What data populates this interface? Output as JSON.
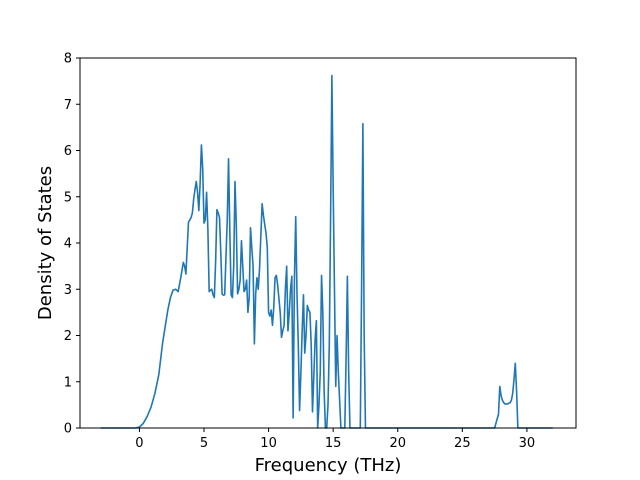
{
  "chart_data": {
    "type": "line",
    "title": "",
    "xlabel": "Frequency (THz)",
    "ylabel": "Density of States",
    "xlim": [
      -4.6,
      33.8
    ],
    "ylim": [
      0,
      8
    ],
    "xticks": [
      0,
      5,
      10,
      15,
      20,
      25,
      30
    ],
    "yticks": [
      0,
      1,
      2,
      3,
      4,
      5,
      6,
      7,
      8
    ],
    "grid": false,
    "legend": "none",
    "series": [
      {
        "color": "#1f77b4",
        "x": [
          -3.0,
          -0.3,
          0.0,
          0.3,
          0.6,
          0.9,
          1.2,
          1.5,
          1.8,
          2.0,
          2.2,
          2.4,
          2.6,
          2.8,
          3.0,
          3.2,
          3.4,
          3.5,
          3.6,
          3.7,
          3.8,
          3.9,
          4.0,
          4.1,
          4.2,
          4.3,
          4.4,
          4.5,
          4.6,
          4.7,
          4.8,
          4.9,
          5.0,
          5.1,
          5.2,
          5.3,
          5.4,
          5.5,
          5.6,
          5.7,
          5.8,
          5.9,
          6.0,
          6.1,
          6.2,
          6.3,
          6.4,
          6.5,
          6.6,
          6.7,
          6.8,
          6.9,
          7.0,
          7.1,
          7.2,
          7.3,
          7.4,
          7.5,
          7.6,
          7.7,
          7.8,
          7.9,
          8.0,
          8.1,
          8.2,
          8.3,
          8.4,
          8.5,
          8.6,
          8.7,
          8.8,
          8.9,
          9.0,
          9.1,
          9.2,
          9.3,
          9.4,
          9.5,
          9.6,
          9.7,
          9.8,
          9.9,
          10.0,
          10.1,
          10.2,
          10.3,
          10.4,
          10.5,
          10.6,
          10.7,
          10.8,
          10.9,
          11.0,
          11.1,
          11.2,
          11.3,
          11.4,
          11.5,
          11.6,
          11.7,
          11.8,
          11.9,
          12.0,
          12.1,
          12.2,
          12.3,
          12.4,
          12.5,
          12.6,
          12.7,
          12.8,
          12.9,
          13.0,
          13.1,
          13.2,
          13.3,
          13.4,
          13.5,
          13.6,
          13.7,
          13.8,
          13.9,
          14.0,
          14.1,
          14.2,
          14.3,
          14.4,
          14.5,
          14.6,
          14.7,
          14.8,
          14.9,
          15.0,
          15.1,
          15.2,
          15.3,
          15.4,
          15.6,
          15.8,
          15.9,
          16.0,
          16.1,
          16.2,
          16.3,
          16.6,
          16.9,
          17.0,
          17.1,
          17.2,
          17.3,
          17.4,
          17.5,
          17.6,
          18.0,
          22.0,
          26.0,
          27.5,
          27.8,
          27.9,
          28.0,
          28.1,
          28.2,
          28.3,
          28.5,
          28.7,
          28.8,
          28.9,
          29.0,
          29.1,
          29.2,
          29.3,
          29.5,
          30.0,
          32.0
        ],
        "y": [
          0,
          0,
          0.02,
          0.1,
          0.25,
          0.45,
          0.75,
          1.15,
          1.85,
          2.2,
          2.55,
          2.82,
          2.98,
          3.0,
          2.95,
          3.25,
          3.58,
          3.5,
          3.33,
          3.9,
          4.45,
          4.5,
          4.55,
          4.65,
          4.95,
          5.15,
          5.33,
          5.1,
          4.7,
          5.3,
          6.12,
          5.6,
          4.43,
          4.5,
          5.1,
          4.3,
          2.95,
          2.98,
          3.0,
          2.88,
          2.82,
          3.6,
          4.72,
          4.65,
          4.55,
          3.8,
          2.9,
          2.87,
          2.88,
          3.7,
          4.5,
          5.82,
          4.25,
          2.88,
          2.82,
          3.5,
          5.33,
          4.4,
          2.9,
          3.0,
          3.2,
          4.05,
          3.5,
          2.95,
          3.0,
          3.2,
          2.5,
          2.82,
          4.33,
          3.9,
          3.5,
          1.82,
          2.9,
          3.25,
          3.0,
          3.45,
          4.15,
          4.85,
          4.6,
          4.4,
          4.22,
          3.9,
          2.5,
          2.42,
          2.55,
          2.22,
          2.6,
          3.25,
          3.3,
          3.1,
          2.8,
          2.5,
          1.96,
          2.1,
          2.22,
          3.0,
          3.5,
          2.1,
          2.5,
          3.0,
          3.28,
          0.22,
          3.2,
          4.57,
          2.9,
          1.8,
          0.38,
          1.2,
          2.1,
          2.88,
          1.62,
          2.0,
          2.65,
          2.55,
          2.5,
          1.8,
          0.35,
          1.1,
          1.9,
          2.32,
          0,
          0.5,
          1.2,
          3.3,
          2.5,
          0.8,
          0,
          0,
          0.5,
          1.8,
          4.5,
          7.62,
          5.2,
          3.0,
          0.9,
          2.0,
          1.2,
          0,
          0,
          0,
          1.5,
          3.28,
          1.2,
          0,
          0,
          0,
          0,
          0,
          3.0,
          6.58,
          2.0,
          0,
          0,
          0,
          0,
          0,
          0,
          0.3,
          0.9,
          0.7,
          0.6,
          0.55,
          0.52,
          0.52,
          0.55,
          0.6,
          0.75,
          1.05,
          1.4,
          0.8,
          0,
          0,
          0,
          0
        ]
      }
    ]
  }
}
